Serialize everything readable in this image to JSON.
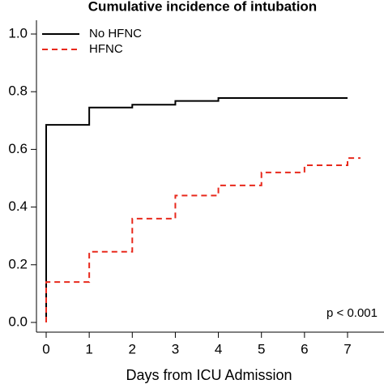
{
  "chart_data": {
    "type": "step",
    "title": "Cumulative incidence of intubation",
    "x_label": "Days from ICU Admission",
    "annotation": "p < 0.001",
    "x": [
      0,
      0,
      1,
      2,
      3,
      4,
      5,
      6,
      7,
      7.3
    ],
    "series": [
      {
        "name": "No HFNC",
        "color": "#000000",
        "dash": false,
        "values": [
          0,
          0.685,
          0.745,
          0.755,
          0.768,
          0.778,
          0.778,
          0.778,
          0.778,
          null
        ]
      },
      {
        "name": "HFNC",
        "color": "#e8291c",
        "dash": true,
        "values": [
          0,
          0.14,
          0.245,
          0.36,
          0.44,
          0.475,
          0.52,
          0.545,
          0.57,
          0.57
        ]
      }
    ],
    "xlim": [
      0,
      7
    ],
    "ylim": [
      0,
      1
    ],
    "xticks": [
      0,
      1,
      2,
      3,
      4,
      5,
      6,
      7
    ],
    "yticks": [
      {
        "value": 0,
        "label": "0.0"
      },
      0.2,
      0.4,
      0.6,
      0.8,
      {
        "value": 1,
        "label": "1.0"
      }
    ],
    "legend": "top-left"
  }
}
